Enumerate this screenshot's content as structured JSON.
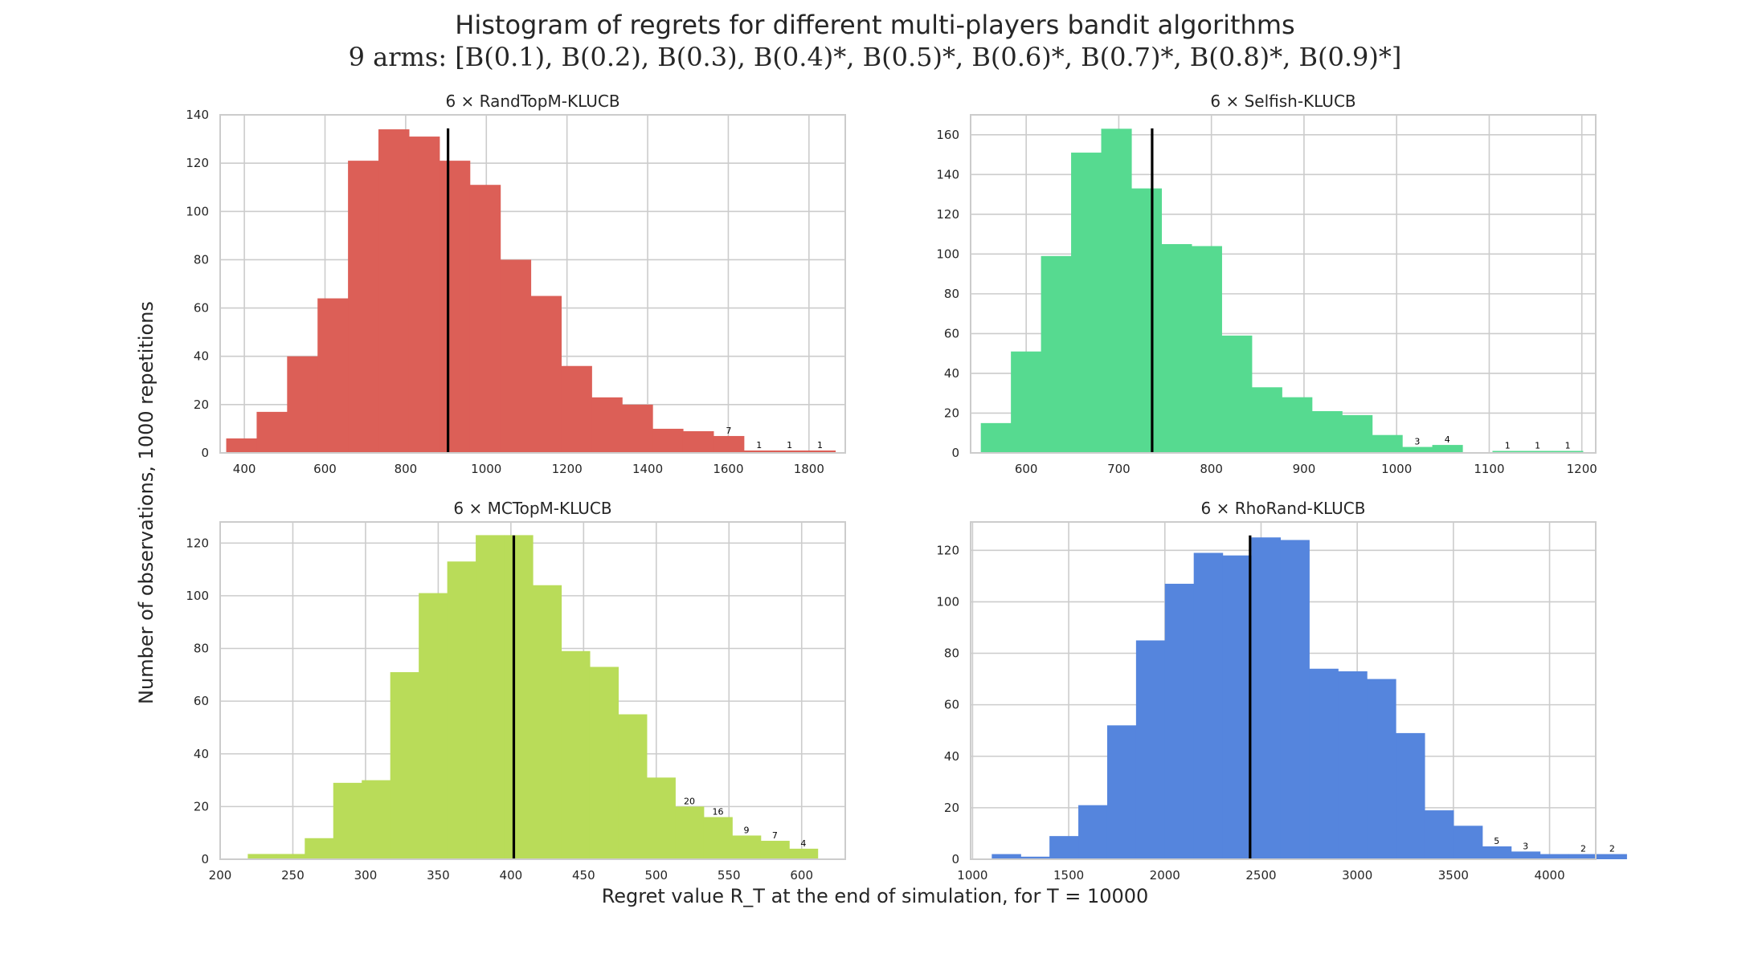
{
  "title": "Histogram of regrets for different multi-players bandit algorithms",
  "subtitle": "9 arms: [B(0.1), B(0.2), B(0.3), B(0.4)*, B(0.5)*, B(0.6)*, B(0.7)*, B(0.8)*, B(0.9)*]",
  "ylabel": "Number of observations, 1000 repetitions",
  "xlabel": "Regret value R_T at the end of simulation, for T = 10000",
  "colors": {
    "grid": "#cccccc",
    "frame": "#cccccc",
    "mean_line": "#000000",
    "text": "#262626"
  },
  "chart_data": [
    {
      "type": "bar",
      "title": "6 × RandTopM-KLUCB",
      "color": "#dc5f57",
      "xlim": [
        340,
        1890
      ],
      "ylim": [
        0,
        140
      ],
      "xticks": [
        400,
        600,
        800,
        1000,
        1200,
        1400,
        1600,
        1800
      ],
      "yticks": [
        0,
        20,
        40,
        60,
        80,
        100,
        120,
        140
      ],
      "bin_start": 355,
      "bin_width": 75.5,
      "values": [
        6,
        17,
        40,
        64,
        121,
        134,
        131,
        121,
        111,
        80,
        65,
        36,
        23,
        20,
        10,
        9,
        7,
        1,
        1,
        1
      ],
      "count_labels": [
        "",
        "",
        "",
        "",
        "",
        "",
        "",
        "",
        "",
        "",
        "",
        "",
        "",
        "",
        "",
        "",
        "7",
        "1",
        "1",
        "1"
      ],
      "mean": 905,
      "grid": true
    },
    {
      "type": "bar",
      "title": "6 × Selfish-KLUCB",
      "color": "#56da90",
      "xlim": [
        540,
        1215
      ],
      "ylim": [
        0,
        170
      ],
      "xticks": [
        600,
        700,
        800,
        900,
        1000,
        1100,
        1200
      ],
      "yticks": [
        0,
        20,
        40,
        60,
        80,
        100,
        120,
        140,
        160
      ],
      "bin_start": 551,
      "bin_width": 32.5,
      "values": [
        15,
        51,
        99,
        151,
        163,
        133,
        105,
        104,
        59,
        33,
        28,
        21,
        19,
        9,
        3,
        4,
        0,
        1,
        1,
        1
      ],
      "count_labels": [
        "",
        "",
        "",
        "",
        "",
        "",
        "",
        "",
        "",
        "",
        "",
        "",
        "",
        "",
        "3",
        "4",
        "",
        "1",
        "1",
        "1"
      ],
      "mean": 736,
      "grid": true
    },
    {
      "type": "bar",
      "title": "6 × MCTopM-KLUCB",
      "color": "#b9dc59",
      "xlim": [
        200,
        630
      ],
      "ylim": [
        0,
        128
      ],
      "xticks": [
        200,
        250,
        300,
        350,
        400,
        450,
        500,
        550,
        600
      ],
      "yticks": [
        0,
        20,
        40,
        60,
        80,
        100,
        120
      ],
      "bin_start": 219,
      "bin_width": 19.6,
      "values": [
        2,
        2,
        8,
        29,
        30,
        71,
        101,
        113,
        123,
        123,
        104,
        79,
        73,
        55,
        31,
        20,
        16,
        9,
        7,
        4
      ],
      "count_labels": [
        "",
        "",
        "",
        "",
        "",
        "",
        "",
        "",
        "",
        "",
        "",
        "",
        "",
        "",
        "",
        "20",
        "16",
        "9",
        "7",
        "4"
      ],
      "mean": 402,
      "grid": true
    },
    {
      "type": "bar",
      "title": "6 × RhoRand-KLUCB",
      "color": "#5585dd",
      "xlim": [
        990,
        4240
      ],
      "ylim": [
        0,
        131
      ],
      "xticks": [
        1000,
        1500,
        2000,
        2500,
        3000,
        3500,
        4000
      ],
      "yticks": [
        0,
        20,
        40,
        60,
        80,
        100,
        120
      ],
      "bin_start": 1100,
      "bin_width": 150,
      "values": [
        2,
        1,
        9,
        21,
        52,
        85,
        107,
        119,
        118,
        125,
        124,
        74,
        73,
        70,
        49,
        19,
        13,
        5,
        3,
        2,
        2,
        2
      ],
      "count_labels": [
        "",
        "",
        "",
        "",
        "",
        "",
        "",
        "",
        "",
        "",
        "",
        "",
        "",
        "",
        "",
        "",
        "",
        "5",
        "3",
        "",
        "2",
        "2"
      ],
      "mean": 2443,
      "grid": true
    }
  ]
}
